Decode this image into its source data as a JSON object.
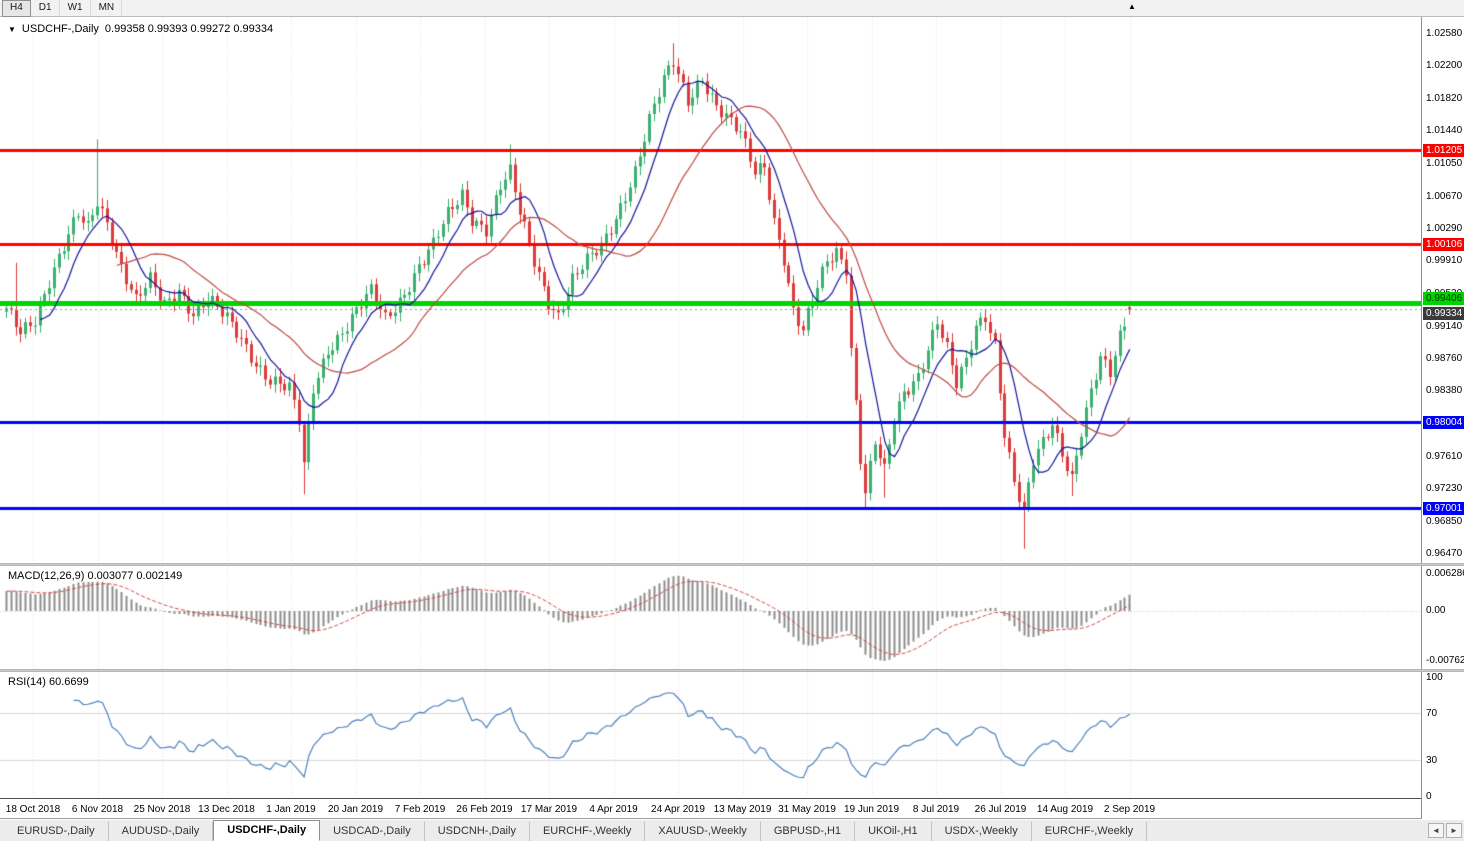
{
  "colors": {
    "grid": "#e2e2e2",
    "up_candle": "#3bb06f",
    "down_candle": "#dd3b3b",
    "current_price_line": "#999999",
    "panel_bg": "#ffffff"
  },
  "icons": {
    "symbol_dropdown": "▼",
    "toolbar_marker": "▲",
    "tab_scroll_left": "◄",
    "tab_scroll_right": "►"
  },
  "toolbar": {
    "timeframes": [
      "H4",
      "D1",
      "W1",
      "MN"
    ],
    "pressed_timeframe": "H4"
  },
  "chart_header": {
    "symbol": "USDCHF-,Daily",
    "ohlc_text": "0.99358 0.99393 0.99272 0.99334"
  },
  "indicator_labels": {
    "macd": "MACD(12,26,9) 0.003077 0.002149",
    "rsi": "RSI(14) 60.6699"
  },
  "tabs": {
    "items": [
      "EURUSD-,Daily",
      "AUDUSD-,Daily",
      "USDCHF-,Daily",
      "USDCAD-,Daily",
      "USDCNH-,Daily",
      "EURCHF-,Weekly",
      "XAUUSD-,Weekly",
      "GBPUSD-,H1",
      "UKOil-,H1",
      "USDX-,Weekly",
      "EURCHF-,Weekly"
    ],
    "active": "USDCHF-,Daily"
  },
  "chart_data": {
    "type": "candlestick",
    "symbol": "USDCHF",
    "period": "Daily",
    "current_bar": {
      "open": 0.99358,
      "high": 0.99393,
      "low": 0.99272,
      "close": 0.99334
    },
    "y_axis": {
      "top": 1.0258,
      "bottom": 0.9647,
      "ticks": [
        1.0258,
        1.022,
        1.0182,
        1.0144,
        1.0105,
        1.0067,
        1.0029,
        0.9991,
        0.9953,
        0.9914,
        0.9876,
        0.9838,
        0.9761,
        0.9723,
        0.9685,
        0.9647
      ]
    },
    "x_axis": {
      "date_labels": [
        "18 Oct 2018",
        "6 Nov 2018",
        "25 Nov 2018",
        "13 Dec 2018",
        "1 Jan 2019",
        "20 Jan 2019",
        "7 Feb 2019",
        "26 Feb 2019",
        "17 Mar 2019",
        "4 Apr 2019",
        "24 Apr 2019",
        "13 May 2019",
        "31 May 2019",
        "19 Jun 2019",
        "8 Jul 2019",
        "26 Jul 2019",
        "14 Aug 2019",
        "2 Sep 2019"
      ]
    },
    "horizontal_lines": [
      {
        "price": 1.01205,
        "color": "#ff0000",
        "width": 3,
        "label_color": "#ffffff"
      },
      {
        "price": 1.00106,
        "color": "#ff0000",
        "width": 3,
        "label_color": "#ffffff"
      },
      {
        "price": 0.99406,
        "color": "#00d400",
        "width": 5,
        "label_color": "#013201"
      },
      {
        "price": 0.98004,
        "color": "#0000ff",
        "width": 3,
        "label_color": "#ffffff"
      },
      {
        "price": 0.97001,
        "color": "#0000ff",
        "width": 3,
        "label_color": "#ffffff"
      }
    ],
    "current_price_tag": {
      "price": 0.99334,
      "bg": "#3a3a3a",
      "fg": "#ffffff"
    },
    "candle_count": 235,
    "close_path_anchors": [
      [
        0,
        0.993
      ],
      [
        3,
        0.9908
      ],
      [
        6,
        0.9925
      ],
      [
        9,
        0.9968
      ],
      [
        12,
        1.0005
      ],
      [
        15,
        1.0042
      ],
      [
        17,
        1.0028
      ],
      [
        19,
        1.0062
      ],
      [
        21,
        1.0038
      ],
      [
        24,
        0.9985
      ],
      [
        27,
        0.9942
      ],
      [
        30,
        0.9965
      ],
      [
        33,
        0.9938
      ],
      [
        36,
        0.9958
      ],
      [
        39,
        0.993
      ],
      [
        42,
        0.9945
      ],
      [
        46,
        0.992
      ],
      [
        49,
        0.9898
      ],
      [
        52,
        0.9872
      ],
      [
        55,
        0.9852
      ],
      [
        59,
        0.9838
      ],
      [
        61,
        0.98
      ],
      [
        62,
        0.9748
      ],
      [
        64,
        0.984
      ],
      [
        67,
        0.9888
      ],
      [
        70,
        0.9908
      ],
      [
        73,
        0.993
      ],
      [
        76,
        0.9952
      ],
      [
        79,
        0.9922
      ],
      [
        82,
        0.9945
      ],
      [
        86,
        0.9985
      ],
      [
        89,
        1.0008
      ],
      [
        92,
        1.0042
      ],
      [
        95,
        1.0068
      ],
      [
        97,
        1.0042
      ],
      [
        100,
        1.003
      ],
      [
        103,
        1.0078
      ],
      [
        105,
        1.0092
      ],
      [
        107,
        1.0045
      ],
      [
        110,
        0.999
      ],
      [
        113,
        0.9945
      ],
      [
        115,
        0.9928
      ],
      [
        118,
        0.9968
      ],
      [
        121,
        0.9988
      ],
      [
        124,
        1.0005
      ],
      [
        127,
        1.0042
      ],
      [
        131,
        1.0098
      ],
      [
        134,
        1.0155
      ],
      [
        137,
        1.02
      ],
      [
        139,
        1.0222
      ],
      [
        142,
        1.018
      ],
      [
        145,
        1.0208
      ],
      [
        148,
        1.0172
      ],
      [
        151,
        1.015
      ],
      [
        153,
        1.0138
      ],
      [
        156,
        1.0095
      ],
      [
        158,
        1.0105
      ],
      [
        160,
        1.004
      ],
      [
        162,
        0.9995
      ],
      [
        164,
        0.993
      ],
      [
        166,
        0.9905
      ],
      [
        168,
        0.9942
      ],
      [
        171,
        0.999
      ],
      [
        173,
        1.0003
      ],
      [
        175,
        0.9985
      ],
      [
        176,
        0.989
      ],
      [
        178,
        0.976
      ],
      [
        179,
        0.9718
      ],
      [
        181,
        0.9775
      ],
      [
        183,
        0.974
      ],
      [
        185,
        0.9802
      ],
      [
        187,
        0.9835
      ],
      [
        190,
        0.9858
      ],
      [
        192,
        0.989
      ],
      [
        194,
        0.992
      ],
      [
        196,
        0.9885
      ],
      [
        198,
        0.9842
      ],
      [
        200,
        0.987
      ],
      [
        202,
        0.9912
      ],
      [
        204,
        0.9928
      ],
      [
        206,
        0.9895
      ],
      [
        208,
        0.979
      ],
      [
        210,
        0.973
      ],
      [
        212,
        0.9692
      ],
      [
        214,
        0.9752
      ],
      [
        216,
        0.9775
      ],
      [
        218,
        0.98
      ],
      [
        220,
        0.9768
      ],
      [
        222,
        0.9738
      ],
      [
        224,
        0.9792
      ],
      [
        226,
        0.9835
      ],
      [
        228,
        0.9872
      ],
      [
        230,
        0.9855
      ],
      [
        232,
        0.99
      ],
      [
        234,
        0.99334
      ]
    ],
    "wick_spikes": [
      {
        "i": 2,
        "high": 0.9988
      },
      {
        "i": 19,
        "high": 1.0133
      },
      {
        "i": 62,
        "low": 0.9716
      },
      {
        "i": 105,
        "high": 1.0127
      },
      {
        "i": 139,
        "high": 1.0246
      },
      {
        "i": 179,
        "low": 0.9698
      },
      {
        "i": 183,
        "low": 0.9712
      },
      {
        "i": 212,
        "low": 0.9652
      },
      {
        "i": 222,
        "low": 0.9714
      }
    ],
    "moving_averages": [
      {
        "period": 8,
        "color": "#16169c"
      },
      {
        "period": 24,
        "color": "#bf4a42"
      }
    ],
    "macd": {
      "fast": 12,
      "slow": 26,
      "signal": 9,
      "display_values": [
        0.003077,
        0.002149
      ],
      "axis_labels": [
        "0.006286",
        "0.00",
        "-0.00762"
      ],
      "hist_color": "#8c8c8c",
      "signal_color": "#d24a4a"
    },
    "rsi": {
      "period": 14,
      "display_value": 60.6699,
      "axis_labels": [
        "100",
        "70",
        "30",
        "0"
      ],
      "levels": [
        70,
        30
      ],
      "level_line_color": "#d8d8d8",
      "line_color": "#4f81bd"
    }
  }
}
